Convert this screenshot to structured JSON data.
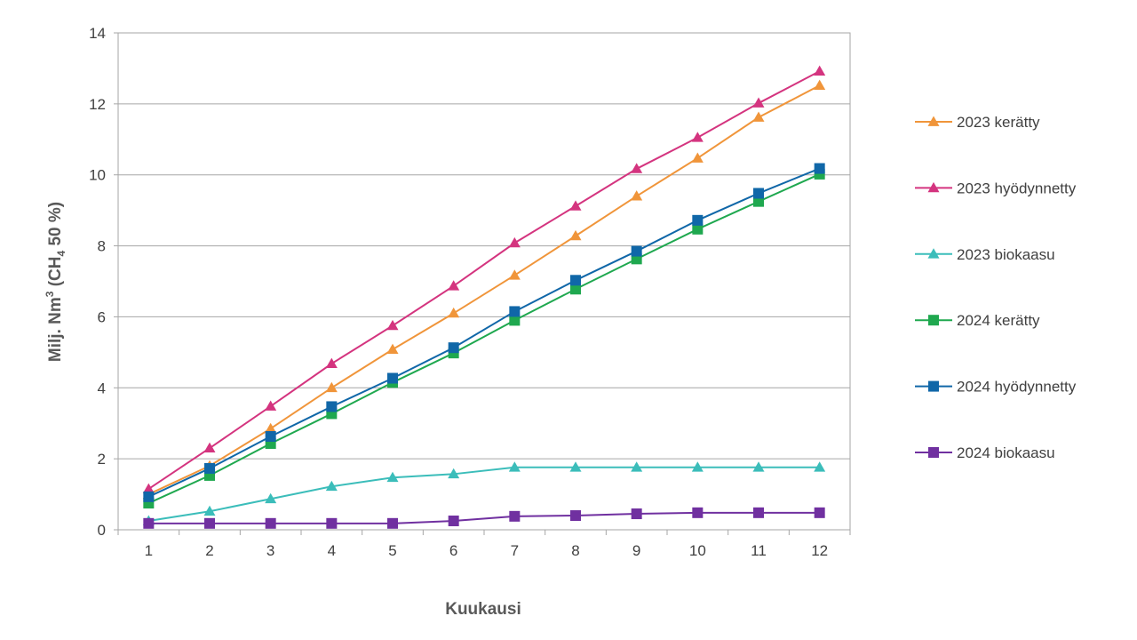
{
  "chart_data": {
    "type": "line",
    "title": "",
    "xlabel": "Kuukausi",
    "ylabel": {
      "prefix": "Milj. Nm",
      "sup": "3",
      "mid": " (CH",
      "sub": "4",
      "suffix": " 50 %)"
    },
    "x": [
      1,
      2,
      3,
      4,
      5,
      6,
      7,
      8,
      9,
      10,
      11,
      12
    ],
    "xlim": [
      0.5,
      12.5
    ],
    "ylim": [
      0,
      14
    ],
    "yticks": [
      0,
      2,
      4,
      6,
      8,
      10,
      12,
      14
    ],
    "grid": true,
    "legend": "right",
    "series": [
      {
        "name": "2023 kerätty",
        "color": "#F0953A",
        "marker": "triangle",
        "values": [
          1.0,
          1.8,
          2.85,
          4.0,
          5.08,
          6.1,
          7.17,
          8.28,
          9.4,
          10.47,
          11.62,
          12.52
        ]
      },
      {
        "name": "2023 hyödynnetty",
        "color": "#D4347F",
        "marker": "triangle",
        "values": [
          1.15,
          2.3,
          3.48,
          4.68,
          5.75,
          6.87,
          8.08,
          9.12,
          10.17,
          11.05,
          12.02,
          12.92
        ]
      },
      {
        "name": "2023 biokaasu",
        "color": "#3BBDBA",
        "marker": "triangle",
        "values": [
          0.25,
          0.52,
          0.87,
          1.22,
          1.47,
          1.57,
          1.76,
          1.76,
          1.76,
          1.76,
          1.76,
          1.76
        ]
      },
      {
        "name": "2024 kerätty",
        "color": "#1FA84F",
        "marker": "square",
        "values": [
          0.75,
          1.53,
          2.43,
          3.27,
          4.15,
          4.98,
          5.9,
          6.78,
          7.63,
          8.47,
          9.25,
          10.02
        ]
      },
      {
        "name": "2024 hyödynnetty",
        "color": "#1067A8",
        "marker": "square",
        "values": [
          0.93,
          1.73,
          2.63,
          3.47,
          4.27,
          5.13,
          6.15,
          7.03,
          7.85,
          8.72,
          9.48,
          10.18
        ]
      },
      {
        "name": "2024 biokaasu",
        "color": "#7030A0",
        "marker": "square",
        "values": [
          0.18,
          0.18,
          0.18,
          0.18,
          0.18,
          0.25,
          0.38,
          0.4,
          0.45,
          0.48,
          0.48,
          0.48
        ]
      }
    ]
  }
}
